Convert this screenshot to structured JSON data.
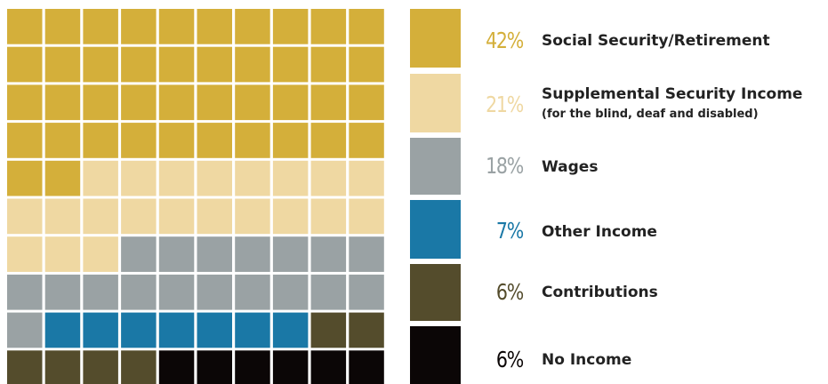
{
  "chart_data": {
    "type": "waffle",
    "grid": {
      "rows": 10,
      "cols": 10
    },
    "categories": [
      {
        "label": "Social Security/Retirement",
        "sublabel": "",
        "percent_text": "42%",
        "value": 42,
        "color": "#d4af3a"
      },
      {
        "label": "Supplemental Security Income",
        "sublabel": "(for the blind, deaf and disabled)",
        "percent_text": "21%",
        "value": 21,
        "color": "#efd8a2"
      },
      {
        "label": "Wages",
        "sublabel": "",
        "percent_text": "18%",
        "value": 18,
        "color": "#9aa2a4"
      },
      {
        "label": "Other Income",
        "sublabel": "",
        "percent_text": "7%",
        "value": 7,
        "color": "#1a78a6"
      },
      {
        "label": "Contributions",
        "sublabel": "",
        "percent_text": "6%",
        "value": 6,
        "color": "#544c2c"
      },
      {
        "label": "No Income",
        "sublabel": "",
        "percent_text": "6%",
        "value": 6,
        "color": "#0b0606"
      }
    ]
  }
}
